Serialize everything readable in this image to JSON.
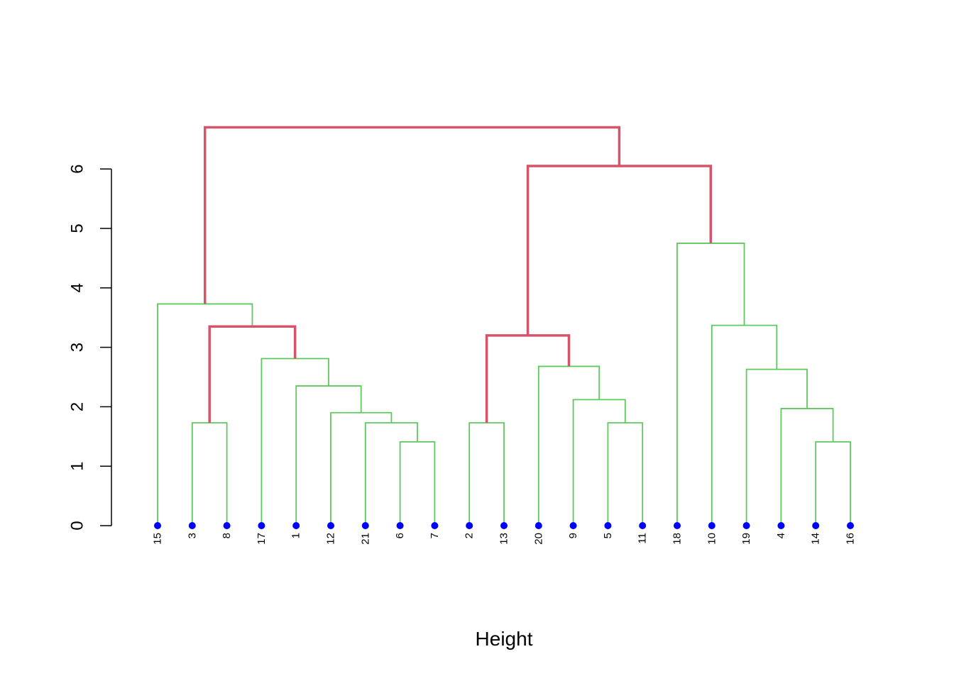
{
  "chart_data": {
    "type": "dendrogram",
    "title": "",
    "xlabel": "Height",
    "ylabel": "",
    "ylim": [
      0,
      6
    ],
    "y_ticks": [
      "0",
      "1",
      "2",
      "3",
      "4",
      "5",
      "6"
    ],
    "grid": false,
    "leaf_order": [
      "15",
      "3",
      "8",
      "17",
      "1",
      "12",
      "21",
      "6",
      "7",
      "2",
      "13",
      "20",
      "9",
      "5",
      "11",
      "18",
      "10",
      "19",
      "4",
      "14",
      "16"
    ],
    "merges": [
      {
        "id": "A",
        "left": "6",
        "right": "7",
        "height": 1.41,
        "style": "green"
      },
      {
        "id": "B",
        "left": "14",
        "right": "16",
        "height": 1.41,
        "style": "green"
      },
      {
        "id": "C",
        "left": "3",
        "right": "8",
        "height": 1.73,
        "style": "green"
      },
      {
        "id": "D",
        "left": "21",
        "right": "A",
        "height": 1.73,
        "style": "green"
      },
      {
        "id": "E",
        "left": "2",
        "right": "13",
        "height": 1.73,
        "style": "green"
      },
      {
        "id": "F",
        "left": "5",
        "right": "11",
        "height": 1.73,
        "style": "green"
      },
      {
        "id": "G",
        "left": "12",
        "right": "D",
        "height": 1.9,
        "style": "green"
      },
      {
        "id": "H",
        "left": "4",
        "right": "B",
        "height": 1.97,
        "style": "green"
      },
      {
        "id": "I",
        "left": "9",
        "right": "F",
        "height": 2.12,
        "style": "green"
      },
      {
        "id": "J",
        "left": "1",
        "right": "G",
        "height": 2.35,
        "style": "green"
      },
      {
        "id": "K",
        "left": "19",
        "right": "H",
        "height": 2.63,
        "style": "green"
      },
      {
        "id": "L",
        "left": "20",
        "right": "I",
        "height": 2.68,
        "style": "green"
      },
      {
        "id": "M",
        "left": "17",
        "right": "J",
        "height": 2.81,
        "style": "green"
      },
      {
        "id": "N",
        "left": "E",
        "right": "L",
        "height": 3.2,
        "style": "red"
      },
      {
        "id": "O",
        "left": "C",
        "right": "M",
        "height": 3.35,
        "style": "red"
      },
      {
        "id": "P",
        "left": "10",
        "right": "K",
        "height": 3.37,
        "style": "green"
      },
      {
        "id": "Q",
        "left": "15",
        "right": "O",
        "height": 3.73,
        "style": "green"
      },
      {
        "id": "R",
        "left": "18",
        "right": "P",
        "height": 4.75,
        "style": "green"
      },
      {
        "id": "S",
        "left": "N",
        "right": "R",
        "height": 6.05,
        "style": "red"
      },
      {
        "id": "T",
        "left": "Q",
        "right": "S",
        "height": 6.7,
        "style": "red"
      }
    ],
    "colors": {
      "main_branch": "#d6546a",
      "sub_branch": "#5ec95e",
      "leaf_point": "#0000ff",
      "axis": "#000000"
    }
  }
}
